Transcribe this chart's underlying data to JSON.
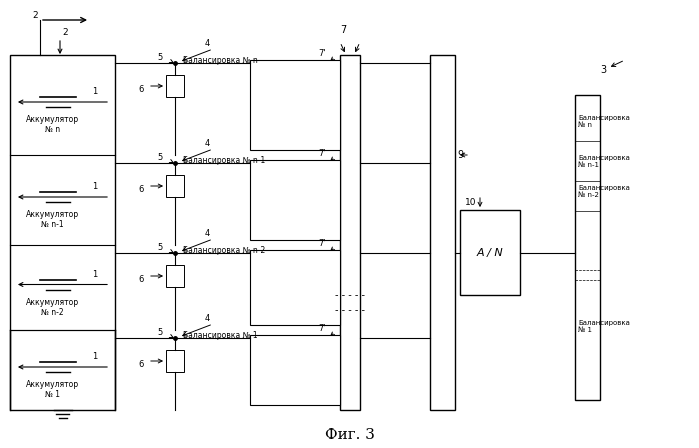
{
  "bg_color": "#ffffff",
  "fig_title": "Фиг. 3",
  "rows": [
    {
      "label_acc": "Аккумулятор\n№ n",
      "label_bal": "Балансировка № n"
    },
    {
      "label_acc": "Аккумулятор\n№ n-1",
      "label_bal": "Балансировка № n-1"
    },
    {
      "label_acc": "Аккумулятор\n№ n-2",
      "label_bal": "Балансировка № n-2"
    },
    {
      "label_acc": "Аккумулятор\n№ 1",
      "label_bal": "Балансировка № 1"
    }
  ],
  "right_labels": [
    "Балансировка\n№ n",
    "Балансировка\n№ n-1",
    "Балансировка\n№ n-2",
    "Балансировка\n№ 1"
  ]
}
